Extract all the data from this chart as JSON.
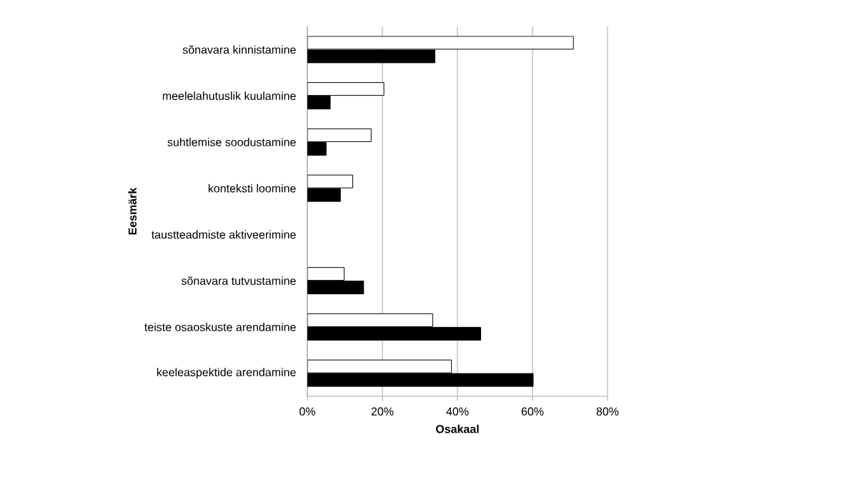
{
  "chart_data": {
    "type": "bar",
    "orientation": "horizontal",
    "xlabel": "Osakaal",
    "ylabel": "Eesmärk",
    "grid": "x",
    "categories": [
      "sõnavara kinnistamine",
      "meelelahutuslik kuulamine",
      "suhtlemise soodustamine",
      "konteksti loomine",
      "taustteadmiste aktiveerimine",
      "sõnavara tutvustamine",
      "teiste osaoskuste arendamine",
      "keeleaspektide arendamine"
    ],
    "series": [
      {
        "color": "#ffffff",
        "values": [
          70.9,
          20.4,
          17.0,
          12.1,
          0,
          9.8,
          33.4,
          38.4
        ]
      },
      {
        "color": "#000000",
        "values": [
          34.0,
          6.1,
          5.0,
          8.8,
          0,
          15.0,
          46.2,
          60.2
        ]
      }
    ],
    "xlim": [
      0,
      80
    ],
    "xticks": [
      {
        "value": 0,
        "label": "0%"
      },
      {
        "value": 20,
        "label": "20%"
      },
      {
        "value": 40,
        "label": "40%"
      },
      {
        "value": 60,
        "label": "60%"
      },
      {
        "value": 80,
        "label": "80%"
      }
    ]
  }
}
